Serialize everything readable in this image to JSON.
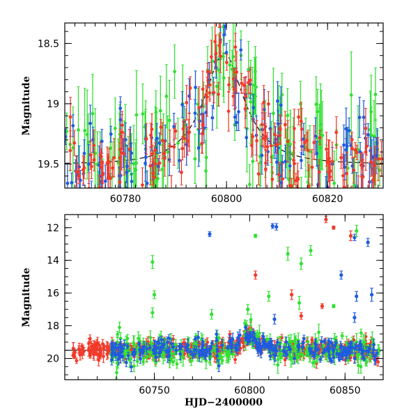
{
  "colors": {
    "green": "#33e033",
    "blue": "#1f5be0",
    "red": "#f23a2a",
    "model": "#000000"
  },
  "chart_data": [
    {
      "type": "scatter",
      "title": "",
      "xlabel": "",
      "ylabel": "Magnitude",
      "xlim": [
        60768,
        60831
      ],
      "ylim": [
        19.7,
        18.33
      ],
      "y_inverted": true,
      "grid": false,
      "x_ticks": [
        {
          "value": 60780,
          "label": "60780"
        },
        {
          "value": 60800,
          "label": "60800"
        },
        {
          "value": 60820,
          "label": "60820"
        }
      ],
      "y_ticks": [
        {
          "value": 18.5,
          "label": "18.5"
        },
        {
          "value": 19,
          "label": "19"
        },
        {
          "value": 19.5,
          "label": "19.5"
        }
      ],
      "model_curve": {
        "description": "black dashed microlensing model, peak near HJD-2400000 = 60799.5",
        "baseline_mag": 19.5,
        "peak_mag": 18.58,
        "t0": 60799.5,
        "u0": 0.45,
        "tE": 9.0
      },
      "series": [
        {
          "color_key": "green",
          "x_range": [
            60768,
            60831
          ],
          "approx_points": 150,
          "typical_error_mag": 0.25
        },
        {
          "color_key": "blue",
          "x_range": [
            60768,
            60831
          ],
          "approx_points": 140,
          "typical_error_mag": 0.12
        },
        {
          "color_key": "red",
          "x_range": [
            60768,
            60831
          ],
          "approx_points": 180,
          "typical_error_mag": 0.12
        }
      ]
    },
    {
      "type": "scatter",
      "title": "",
      "xlabel": "HJD−2400000",
      "ylabel": "Magnitude",
      "xlim": [
        60703,
        60870
      ],
      "ylim": [
        21.3,
        11.2
      ],
      "y_inverted": true,
      "grid": false,
      "x_ticks": [
        {
          "value": 60750,
          "label": "60750"
        },
        {
          "value": 60800,
          "label": "60800"
        },
        {
          "value": 60850,
          "label": "60850"
        }
      ],
      "y_ticks": [
        {
          "value": 12,
          "label": "12"
        },
        {
          "value": 14,
          "label": "14"
        },
        {
          "value": 16,
          "label": "16"
        },
        {
          "value": 18,
          "label": "18"
        },
        {
          "value": 20,
          "label": "20"
        }
      ],
      "model_curve": {
        "description": "black model curve under data, peak near 60799.5",
        "baseline_mag": 19.5,
        "peak_mag": 18.6,
        "t0": 60799.5,
        "u0": 0.45,
        "tE": 9.0
      },
      "series": [
        {
          "color_key": "red",
          "x_range": [
            60707,
            60868
          ],
          "approx_points": 420,
          "typical_error_mag": 0.25
        },
        {
          "color_key": "green",
          "x_range": [
            60727,
            60868
          ],
          "approx_points": 300,
          "typical_error_mag": 0.35
        },
        {
          "color_key": "blue",
          "x_range": [
            60727,
            60868
          ],
          "approx_points": 260,
          "typical_error_mag": 0.25
        }
      ],
      "outliers": [
        {
          "series": "blue",
          "x": 60779,
          "y": 12.4,
          "err": 0.15
        },
        {
          "series": "blue",
          "x": 60812,
          "y": 11.9,
          "err": 0.15
        },
        {
          "series": "blue",
          "x": 60814,
          "y": 11.95,
          "err": 0.2
        },
        {
          "series": "blue",
          "x": 60848,
          "y": 14.9,
          "err": 0.25
        },
        {
          "series": "blue",
          "x": 60855,
          "y": 12.6,
          "err": 0.2
        },
        {
          "series": "blue",
          "x": 60862,
          "y": 12.9,
          "err": 0.25
        },
        {
          "series": "blue",
          "x": 60856,
          "y": 16.2,
          "err": 0.3
        },
        {
          "series": "blue",
          "x": 60864,
          "y": 16.1,
          "err": 0.4
        },
        {
          "series": "blue",
          "x": 60813,
          "y": 17.6,
          "err": 0.3
        },
        {
          "series": "blue",
          "x": 60855,
          "y": 17.5,
          "err": 0.3
        },
        {
          "series": "red",
          "x": 60840,
          "y": 11.5,
          "err": 0.2
        },
        {
          "series": "red",
          "x": 60844,
          "y": 12.0,
          "err": 0.1
        },
        {
          "series": "red",
          "x": 60853,
          "y": 12.5,
          "err": 0.3
        },
        {
          "series": "red",
          "x": 60803,
          "y": 14.9,
          "err": 0.25
        },
        {
          "series": "red",
          "x": 60822,
          "y": 16.1,
          "err": 0.3
        },
        {
          "series": "red",
          "x": 60838,
          "y": 16.8,
          "err": 0.15
        },
        {
          "series": "red",
          "x": 60827,
          "y": 17.4,
          "err": 0.2
        },
        {
          "series": "green",
          "x": 60803,
          "y": 12.5,
          "err": 0.1
        },
        {
          "series": "green",
          "x": 60856,
          "y": 12.2,
          "err": 0.35
        },
        {
          "series": "green",
          "x": 60832,
          "y": 13.4,
          "err": 0.3
        },
        {
          "series": "green",
          "x": 60820,
          "y": 13.6,
          "err": 0.4
        },
        {
          "series": "green",
          "x": 60827,
          "y": 14.2,
          "err": 0.35
        },
        {
          "series": "green",
          "x": 60749,
          "y": 14.1,
          "err": 0.4
        },
        {
          "series": "green",
          "x": 60750,
          "y": 16.1,
          "err": 0.25
        },
        {
          "series": "green",
          "x": 60810,
          "y": 16.2,
          "err": 0.3
        },
        {
          "series": "green",
          "x": 60826,
          "y": 16.6,
          "err": 0.4
        },
        {
          "series": "green",
          "x": 60844,
          "y": 16.8,
          "err": 0.1
        },
        {
          "series": "green",
          "x": 60749,
          "y": 17.2,
          "err": 0.3
        },
        {
          "series": "green",
          "x": 60780,
          "y": 17.3,
          "err": 0.3
        },
        {
          "series": "green",
          "x": 60799,
          "y": 17.0,
          "err": 0.3
        }
      ]
    }
  ]
}
